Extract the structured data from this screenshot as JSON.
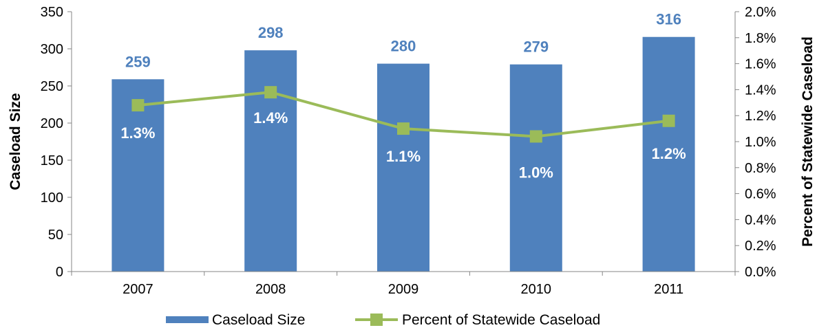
{
  "chart_data": {
    "type": "bar",
    "categories": [
      "2007",
      "2008",
      "2009",
      "2010",
      "2011"
    ],
    "series": [
      {
        "name": "Caseload Size",
        "type": "bar",
        "axis": "left",
        "color": "#4F81BD",
        "values": [
          259,
          298,
          280,
          279,
          316
        ],
        "labels": [
          "259",
          "298",
          "280",
          "279",
          "316"
        ]
      },
      {
        "name": "Percent of Statewide Caseload",
        "type": "line",
        "axis": "right",
        "color": "#9BBB59",
        "values": [
          1.28,
          1.38,
          1.1,
          1.04,
          1.16
        ],
        "labels": [
          "1.3%",
          "1.4%",
          "1.1%",
          "1.0%",
          "1.2%"
        ]
      }
    ],
    "ylabel": "Caseload Size",
    "y2label": "Percent of Statewide Caseload",
    "ylim": [
      0,
      350
    ],
    "y2lim": [
      0,
      2.0
    ],
    "yticks": [
      "0",
      "50",
      "100",
      "150",
      "200",
      "250",
      "300",
      "350"
    ],
    "y2ticks": [
      "0.0%",
      "0.2%",
      "0.4%",
      "0.6%",
      "0.8%",
      "1.0%",
      "1.2%",
      "1.4%",
      "1.6%",
      "1.8%",
      "2.0%"
    ],
    "grid": false,
    "legend_position": "bottom",
    "bar_label_color": "#4F81BD",
    "line_label_color": "#FFFFFF"
  }
}
